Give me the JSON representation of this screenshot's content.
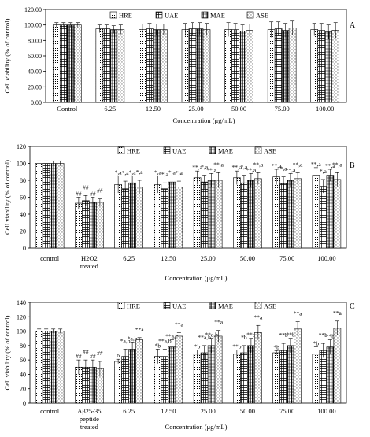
{
  "patterns": [
    "dots",
    "grid",
    "vlines",
    "stipple"
  ],
  "chart_data": [
    {
      "type": "bar",
      "panel_label": "A",
      "ylabel": "Cell viability (% of control)",
      "xlabel": "Concentration (μg/mL)",
      "ylim": [
        0,
        120
      ],
      "yticks": [
        "0.00",
        "20.00",
        "40.00",
        "60.00",
        "80.00",
        "100.00",
        "120.00"
      ],
      "legend": [
        "HRE",
        "UAE",
        "MAE",
        "ASE"
      ],
      "categories": [
        "Control",
        "6.25",
        "12.50",
        "25.00",
        "50.00",
        "75.00",
        "100.00"
      ],
      "series": [
        {
          "name": "HRE",
          "values": [
            100,
            95,
            94,
            94,
            94,
            94,
            94
          ],
          "errors": [
            3,
            5,
            7,
            8,
            9,
            10,
            8
          ]
        },
        {
          "name": "UAE",
          "values": [
            100,
            95,
            95,
            95,
            94,
            95,
            93
          ],
          "errors": [
            3,
            5,
            7,
            8,
            8,
            9,
            9
          ]
        },
        {
          "name": "MAE",
          "values": [
            100,
            94,
            94,
            95,
            92,
            93,
            91
          ],
          "errors": [
            3,
            5,
            7,
            8,
            8,
            9,
            9
          ]
        },
        {
          "name": "ASE",
          "values": [
            100,
            94,
            94,
            94,
            93,
            96,
            93
          ],
          "errors": [
            3,
            6,
            7,
            8,
            8,
            9,
            10
          ]
        }
      ],
      "annotations": []
    },
    {
      "type": "bar",
      "panel_label": "B",
      "ylabel": "Cell viability (% of control)",
      "xlabel": "Concentration (μg/mL)",
      "ylim": [
        0,
        120
      ],
      "yticks": [
        "0",
        "20",
        "40",
        "60",
        "80",
        "100",
        "120"
      ],
      "legend": [
        "HRE",
        "UAE",
        "MAE",
        "ASE"
      ],
      "categories": [
        "control",
        "H2O2\ntreated",
        "6.25",
        "12.50",
        "25.00",
        "50.00",
        "75.00",
        "100.00"
      ],
      "series": [
        {
          "name": "HRE",
          "values": [
            100,
            53,
            75,
            75,
            83,
            83,
            84,
            86
          ],
          "errors": [
            3,
            7,
            10,
            10,
            8,
            8,
            9,
            9
          ]
        },
        {
          "name": "UAE",
          "values": [
            100,
            56,
            70,
            70,
            78,
            77,
            76,
            73
          ],
          "errors": [
            3,
            6,
            9,
            7,
            8,
            9,
            8,
            8
          ]
        },
        {
          "name": "MAE",
          "values": [
            100,
            54,
            77,
            78,
            80,
            80,
            80,
            86
          ],
          "errors": [
            3,
            6,
            8,
            7,
            8,
            8,
            8,
            7
          ]
        },
        {
          "name": "ASE",
          "values": [
            100,
            54,
            72,
            72,
            80,
            82,
            82,
            81
          ],
          "errors": [
            3,
            4,
            8,
            7,
            9,
            7,
            7,
            8
          ]
        }
      ],
      "annotations": [
        [
          [],
          [
            "##",
            "##",
            "##",
            "##"
          ],
          [
            "*,a",
            "*,a",
            "*,a",
            "*,a"
          ],
          [
            "*,a",
            "*,a",
            "*,a",
            "*,a"
          ],
          [
            "**,a",
            "*,a",
            "**,a",
            "**,a"
          ],
          [
            "**,a",
            "*,a",
            "**,a",
            "**,a"
          ],
          [
            "**,a",
            "*,a",
            "**,a",
            "**,a"
          ],
          [
            "**,a",
            "*,a",
            "**,a",
            "**,a"
          ]
        ]
      ]
    },
    {
      "type": "bar",
      "panel_label": "C",
      "ylabel": "Cell viability (% of control)",
      "xlabel": "Concentration (μg/mL)",
      "ylim": [
        0,
        140
      ],
      "yticks": [
        "0",
        "20",
        "40",
        "60",
        "80",
        "100",
        "120",
        "140"
      ],
      "legend": [
        "HRE",
        "UAE",
        "MAE",
        "ASE"
      ],
      "categories": [
        "control",
        "Aβ25-35\npeptide\ntreated",
        "6.25",
        "12.50",
        "25.00",
        "50.00",
        "75.00",
        "100.00"
      ],
      "series": [
        {
          "name": "HRE",
          "values": [
            100,
            50,
            58,
            65,
            68,
            68,
            70,
            68
          ],
          "errors": [
            3,
            10,
            3,
            10,
            6,
            6,
            3,
            10
          ]
        },
        {
          "name": "UAE",
          "values": [
            100,
            50,
            65,
            65,
            70,
            70,
            73,
            73
          ],
          "errors": [
            3,
            10,
            10,
            10,
            10,
            10,
            10,
            10
          ]
        },
        {
          "name": "MAE",
          "values": [
            100,
            50,
            75,
            78,
            80,
            80,
            80,
            78
          ],
          "errors": [
            3,
            10,
            10,
            10,
            10,
            10,
            10,
            10
          ]
        },
        {
          "name": "ASE",
          "values": [
            100,
            48,
            88,
            93,
            93,
            98,
            103,
            104
          ],
          "errors": [
            3,
            10,
            3,
            5,
            8,
            10,
            10,
            10
          ]
        }
      ],
      "annotations": [
        [
          [],
          [
            "##",
            "##",
            "##",
            "##"
          ],
          [
            "b",
            "*a,b",
            "*a,b",
            "**a"
          ],
          [
            "*b",
            "**a,b",
            "**a,b",
            "**a"
          ],
          [
            "*b",
            "**a,b",
            "**a,b",
            "**a"
          ],
          [
            "**b",
            "*b",
            "**b",
            "**a"
          ],
          [
            "*b",
            "**b",
            "**b",
            "**a"
          ],
          [
            "*b",
            "**b",
            "**b",
            "**a"
          ]
        ]
      ]
    }
  ]
}
